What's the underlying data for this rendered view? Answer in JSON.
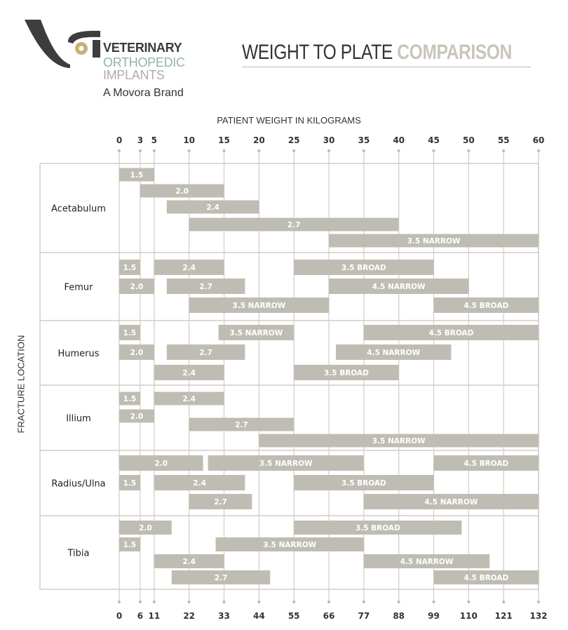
{
  "brand": {
    "line1": "VETERINARY",
    "line2": "ORTHOPEDIC",
    "line3": "IMPLANTS",
    "tagline": "A Movora Brand",
    "colors": {
      "dark": "#3d3d3d",
      "gold": "#c8b07a",
      "teal": "#8fb3ae",
      "gray": "#b0ada6"
    }
  },
  "title": {
    "part1": "WEIGHT TO PLATE",
    "part2": "COMPARISON"
  },
  "chart_data": {
    "type": "range-bar",
    "xlabel": "PATIENT WEIGHT IN KILOGRAMS",
    "ylabel": "FRACTURE LOCATION",
    "xlim": [
      0,
      60
    ],
    "top_ticks": [
      "0",
      "3",
      "5",
      "10",
      "15",
      "20",
      "25",
      "30",
      "35",
      "40",
      "45",
      "50",
      "55",
      "60"
    ],
    "top_tick_values": [
      0,
      3,
      5,
      10,
      15,
      20,
      25,
      30,
      35,
      40,
      45,
      50,
      55,
      60
    ],
    "bottom_ticks": [
      "0",
      "6",
      "11",
      "22",
      "33",
      "44",
      "55",
      "66",
      "77",
      "88",
      "99",
      "110",
      "121",
      "132"
    ],
    "grid": true,
    "bar_color": "#bfbdb3",
    "groups": [
      {
        "name": "Acetabulum",
        "bars": [
          {
            "label": "1.5",
            "from": 0,
            "to": 5
          },
          {
            "label": "2.0",
            "from": 3,
            "to": 15
          },
          {
            "label": "2.4",
            "from": 6.8,
            "to": 20
          },
          {
            "label": "2.7",
            "from": 10,
            "to": 40
          },
          {
            "label": "3.5 NARROW",
            "from": 30,
            "to": 60
          }
        ]
      },
      {
        "name": "Femur",
        "bars": [
          {
            "label": "1.5",
            "from": 0,
            "to": 3
          },
          {
            "label": "2.4",
            "from": 5,
            "to": 15
          },
          {
            "label": "3.5 BROAD",
            "from": 25,
            "to": 45
          },
          {
            "label": "2.0",
            "from": 0,
            "to": 5
          },
          {
            "label": "2.7",
            "from": 6.8,
            "to": 18
          },
          {
            "label": "4.5 NARROW",
            "from": 30,
            "to": 50
          },
          {
            "label": "3.5 NARROW",
            "from": 10,
            "to": 30
          },
          {
            "label": "4.5 BROAD",
            "from": 45,
            "to": 60
          }
        ]
      },
      {
        "name": "Humerus",
        "bars": [
          {
            "label": "1.5",
            "from": 0,
            "to": 3
          },
          {
            "label": "3.5 NARROW",
            "from": 14.2,
            "to": 25
          },
          {
            "label": "4.5 BROAD",
            "from": 35,
            "to": 60
          },
          {
            "label": "2.0",
            "from": 0,
            "to": 5
          },
          {
            "label": "2.7",
            "from": 6.8,
            "to": 18
          },
          {
            "label": "4.5 NARROW",
            "from": 31,
            "to": 47.5
          },
          {
            "label": "2.4",
            "from": 5,
            "to": 15
          },
          {
            "label": "3.5 BROAD",
            "from": 25,
            "to": 40
          }
        ]
      },
      {
        "name": "Illium",
        "bars": [
          {
            "label": "1.5",
            "from": 0,
            "to": 3
          },
          {
            "label": "2.4",
            "from": 5,
            "to": 15
          },
          {
            "label": "2.0",
            "from": 0,
            "to": 5
          },
          {
            "label": "2.7",
            "from": 10,
            "to": 25
          },
          {
            "label": "3.5 NARROW",
            "from": 20,
            "to": 60
          }
        ]
      },
      {
        "name": "Radius/Ulna",
        "bars": [
          {
            "label": "2.0",
            "from": 0,
            "to": 12
          },
          {
            "label": "3.5 NARROW",
            "from": 12.7,
            "to": 35
          },
          {
            "label": "4.5 BROAD",
            "from": 45,
            "to": 60
          },
          {
            "label": "1.5",
            "from": 0,
            "to": 3
          },
          {
            "label": "2.4",
            "from": 5,
            "to": 18
          },
          {
            "label": "3.5 BROAD",
            "from": 25,
            "to": 45
          },
          {
            "label": "2.7",
            "from": 10,
            "to": 19
          },
          {
            "label": "4.5 NARROW",
            "from": 35,
            "to": 60
          }
        ]
      },
      {
        "name": "Tibia",
        "bars": [
          {
            "label": "2.0",
            "from": 0,
            "to": 7.5
          },
          {
            "label": "3.5 BROAD",
            "from": 25,
            "to": 49
          },
          {
            "label": "1.5",
            "from": 0,
            "to": 3
          },
          {
            "label": "3.5 NARROW",
            "from": 13.8,
            "to": 35
          },
          {
            "label": "2.4",
            "from": 5,
            "to": 15
          },
          {
            "label": "4.5 NARROW",
            "from": 35,
            "to": 53
          },
          {
            "label": "2.7",
            "from": 7.5,
            "to": 21.6
          },
          {
            "label": "4.5 BROAD",
            "from": 45,
            "to": 60
          }
        ]
      }
    ]
  }
}
